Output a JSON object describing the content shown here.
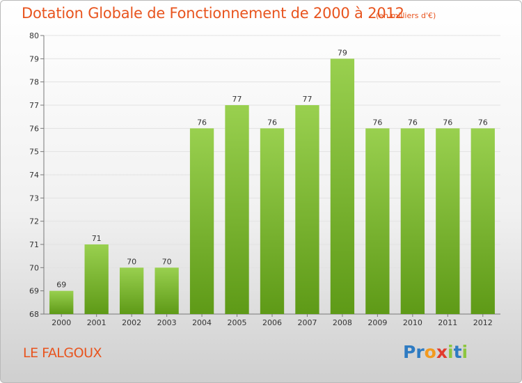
{
  "header": {
    "title": "Dotation Globale de Fonctionnement de 2000 à 2012",
    "subtitle": "(en milliers d'€)"
  },
  "footer": {
    "commune": "LE FALGOUX",
    "logo_letters": [
      "P",
      "r",
      "o",
      "x",
      "i",
      "t",
      "i"
    ],
    "logo_colors": [
      "#2e7bc2",
      "#2e7bc2",
      "#f29a1f",
      "#e23b2e",
      "#8dc63f",
      "#2e7bc2",
      "#8dc63f"
    ]
  },
  "chart_data": {
    "type": "bar",
    "title": "Dotation Globale de Fonctionnement de 2000 à 2012",
    "subtitle": "(en milliers d'€)",
    "categories": [
      "2000",
      "2001",
      "2002",
      "2003",
      "2004",
      "2005",
      "2006",
      "2007",
      "2008",
      "2009",
      "2010",
      "2011",
      "2012"
    ],
    "values": [
      69,
      71,
      70,
      70,
      76,
      77,
      76,
      77,
      79,
      76,
      76,
      76,
      76
    ],
    "ylim": [
      68,
      80
    ],
    "yticks": [
      68,
      69,
      70,
      71,
      72,
      73,
      74,
      75,
      76,
      77,
      78,
      79,
      80
    ],
    "grid": true,
    "bar_color_top": "#99d04f",
    "bar_color_bottom": "#5e9a17"
  }
}
